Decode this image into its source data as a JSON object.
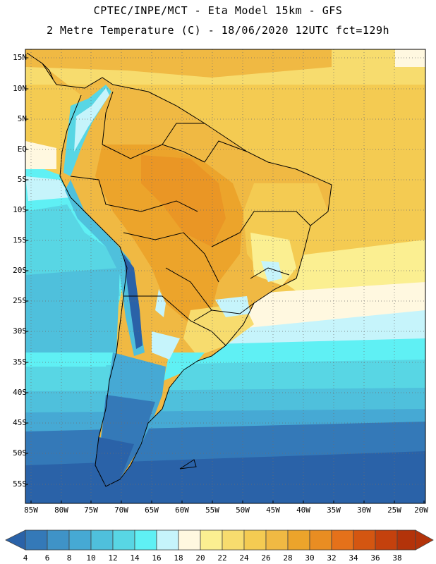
{
  "header": {
    "line1": "CPTEC/INPE/MCT -  Eta Model 15km - GFS",
    "line2": "2 Metre Temperature (C) - 18/06/2020 12UTC fct=129h"
  },
  "map": {
    "lat_labels": [
      "15N",
      "10N",
      "5N",
      "EQ",
      "5S",
      "10S",
      "15S",
      "20S",
      "25S",
      "30S",
      "35S",
      "40S",
      "45S",
      "50S",
      "55S"
    ],
    "lon_labels": [
      "85W",
      "80W",
      "75W",
      "70W",
      "65W",
      "60W",
      "55W",
      "50W",
      "45W",
      "40W",
      "35W",
      "30W",
      "25W",
      "20W"
    ]
  },
  "colorbar": {
    "levels": [
      "4",
      "6",
      "8",
      "10",
      "12",
      "14",
      "16",
      "18",
      "20",
      "22",
      "24",
      "26",
      "28",
      "30",
      "32",
      "34",
      "36",
      "38"
    ],
    "colors": [
      "#2a62a8",
      "#3479b8",
      "#3f93c7",
      "#46a9d4",
      "#4fc0dc",
      "#58d6e4",
      "#5ff0f4",
      "#c6f4fb",
      "#fff8e0",
      "#fbef91",
      "#f7dc6e",
      "#f4cb52",
      "#f0b943",
      "#eca42b",
      "#e98d22",
      "#e5711a",
      "#d45611",
      "#c4410d",
      "#b3330a"
    ]
  }
}
